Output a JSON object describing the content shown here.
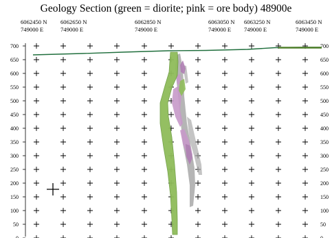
{
  "title": "Geology Section (green = diorite; pink = ore body)  48900e",
  "grid_labels": [
    {
      "north": "6062450 N",
      "east": "749000 E"
    },
    {
      "north": "6062650 N",
      "east": "749000 E"
    },
    {
      "north": "6062850 N",
      "east": "749000 E"
    },
    {
      "north": "6063050 N",
      "east": "749000 E"
    },
    {
      "north": "6063250 N",
      "east": "749000 E"
    },
    {
      "north": "6063450 N",
      "east": "749000 E"
    }
  ],
  "elevation_ticks": [
    "700",
    "650",
    "600",
    "550",
    "500",
    "450",
    "400",
    "350",
    "300",
    "250",
    "200",
    "150",
    "100",
    "50",
    "0"
  ],
  "colors": {
    "diorite": "#8fbc5a",
    "diorite_edge": "#6f9e45",
    "ore_body": "#c79ac9",
    "ore_body_dark": "#b07fb4",
    "gray_zone": "#a9a9a9",
    "topography": "#1f6e3c",
    "grid_cross": "#000000"
  },
  "cursor_icon": "crosshair-cursor-icon"
}
